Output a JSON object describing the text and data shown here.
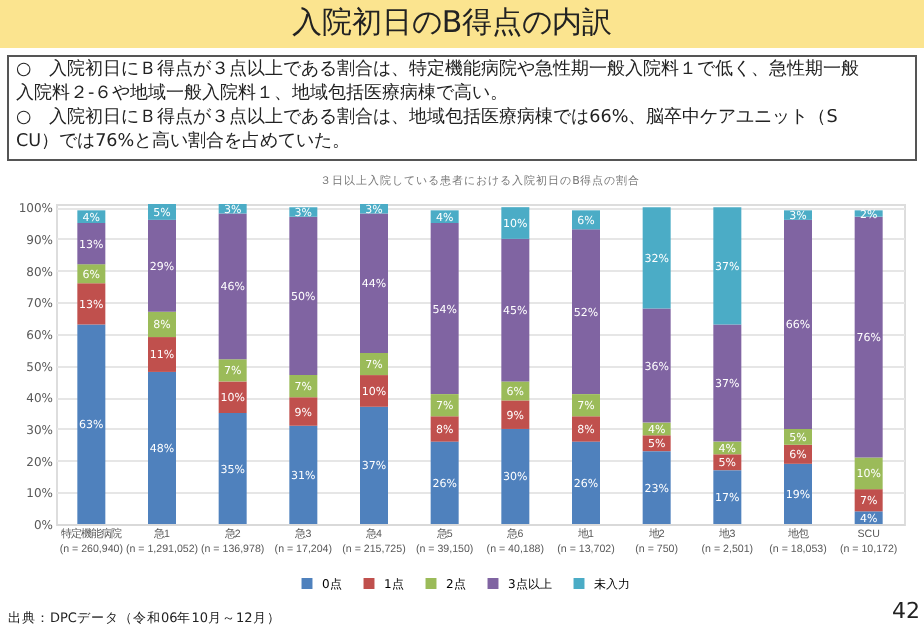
{
  "chart_data": {
    "type": "bar",
    "stacked": true,
    "title": "入院初日のB得点の内訳",
    "subtitle": "３日以上入院している患者における入院初日のB得点の割合",
    "categories": [
      "特定機能病院\n(n = 260,940)",
      "急1\n(n = 1,291,052)",
      "急2\n(n = 136,978)",
      "急3\n(n = 17,204)",
      "急4\n(n = 215,725)",
      "急5\n(n = 39,150)",
      "急6\n(n = 40,188)",
      "地1\n(n = 13,702)",
      "地2\n(n = 750)",
      "地3\n(n = 2,501)",
      "地包\n(n = 18,053)",
      "SCU\n(n = 10,172)"
    ],
    "series": [
      {
        "name": "0点",
        "color": "#4f81bd",
        "values": [
          63,
          48,
          35,
          31,
          37,
          26,
          30,
          26,
          23,
          17,
          19,
          4
        ]
      },
      {
        "name": "1点",
        "color": "#c0504d",
        "values": [
          13,
          11,
          10,
          9,
          10,
          8,
          9,
          8,
          5,
          5,
          6,
          7
        ]
      },
      {
        "name": "2点",
        "color": "#9bbb59",
        "values": [
          6,
          8,
          7,
          7,
          7,
          7,
          6,
          7,
          4,
          4,
          5,
          10
        ]
      },
      {
        "name": "3点以上",
        "color": "#8064a2",
        "values": [
          13,
          29,
          46,
          50,
          44,
          54,
          45,
          52,
          36,
          37,
          66,
          76
        ]
      },
      {
        "name": "未入力",
        "color": "#4bacc6",
        "values": [
          4,
          5,
          3,
          3,
          3,
          4,
          10,
          6,
          32,
          37,
          3,
          2
        ]
      }
    ],
    "ylim": [
      0,
      101
    ],
    "yticks": [
      {
        "value": 0,
        "label": "0%"
      },
      {
        "value": 10,
        "label": "10%"
      },
      {
        "value": 20,
        "label": "20%"
      },
      {
        "value": 30,
        "label": "30%"
      },
      {
        "value": 40,
        "label": "40%"
      },
      {
        "value": 50,
        "label": "50%"
      },
      {
        "value": 60,
        "label": "60%"
      },
      {
        "value": 70,
        "label": "70%"
      },
      {
        "value": 80,
        "label": "80%"
      },
      {
        "value": 90,
        "label": "90%"
      },
      {
        "value": 100,
        "label": "100%"
      }
    ],
    "value_labels": [
      [
        "63%",
        "48%",
        "35%",
        "31%",
        "37%",
        "26%",
        "30%",
        "26%",
        "23%",
        "17%",
        "19%",
        "4%"
      ],
      [
        "13%",
        "11%",
        "10%",
        "9%",
        "10%",
        "8%",
        "9%",
        "8%",
        "5%",
        "5%",
        "6%",
        "7%"
      ],
      [
        "6%",
        "8%",
        "7%",
        "7%",
        "7%",
        "7%",
        "6%",
        "7%",
        "4%",
        "4%",
        "5%",
        "10%"
      ],
      [
        "13%",
        "29%",
        "46%",
        "50%",
        "44%",
        "54%",
        "45%",
        "52%",
        "36%",
        "37%",
        "66%",
        "76%"
      ],
      [
        "4%",
        "5%",
        "3%",
        "3%",
        "3%",
        "4%",
        "10%",
        "6%",
        "32%",
        "37%",
        "3%",
        "2%"
      ]
    ],
    "grid": "y",
    "legend": "bottom",
    "annotations": [
      "○　入院初日にＢ得点が３点以上である割合は、特定機能病院や急性期一般入院料１で低く、急性期一般入院料２-６や地域一般入院料１、地域包括医療病棟で高い。",
      "○　入院初日にＢ得点が３点以上である割合は、地域包括医療病棟では66%、脳卒中ケアユニット（SCU）では76%と高い割合を占めていた。",
      "出典：DPCデータ（令和06年10月～12月）",
      "42"
    ]
  }
}
